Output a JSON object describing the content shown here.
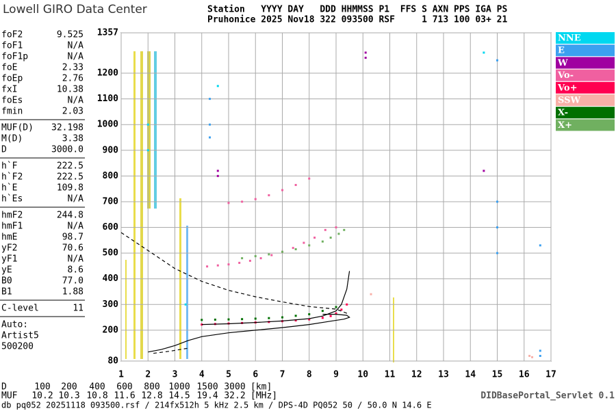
{
  "header": {
    "logo": "Lowell GIRO Data Center",
    "row1": "Station   YYYY DAY   DDD HHMMSS P1  FFS S AXN PPS IGA PS",
    "row2": "Pruhonice 2025 Nov18 322 093500 RSF     1 713 100 03+ 21"
  },
  "params": [
    [
      [
        "foF2",
        "9.525"
      ],
      [
        "foF1",
        "N/A"
      ],
      [
        "foF1p",
        "N/A"
      ],
      [
        "foE",
        "2.33"
      ],
      [
        "foEp",
        "2.76"
      ],
      [
        "fxI",
        "10.38"
      ],
      [
        "foEs",
        "N/A"
      ],
      [
        "fmin",
        "2.03"
      ]
    ],
    [
      [
        "MUF(D)",
        "32.198"
      ],
      [
        "M(D)",
        "3.38"
      ],
      [
        "D",
        "3000.0"
      ]
    ],
    [
      [
        "h`F",
        "222.5"
      ],
      [
        "h`F2",
        "222.5"
      ],
      [
        "h`E",
        "109.8"
      ],
      [
        "h`Es",
        "N/A"
      ]
    ],
    [
      [
        "hmF2",
        "244.8"
      ],
      [
        "hmF1",
        "N/A"
      ],
      [
        "hmE",
        "98.7"
      ],
      [
        "yF2",
        "70.6"
      ],
      [
        "yF1",
        "N/A"
      ],
      [
        "yE",
        "8.6"
      ],
      [
        "B0",
        "77.0"
      ],
      [
        "B1",
        "1.88"
      ]
    ],
    [
      [
        "C-level",
        "11"
      ]
    ]
  ],
  "autoscale": [
    "Auto:",
    "Artist5",
    "500200"
  ],
  "dist_table": {
    "d_label": "D",
    "d_values": [
      100,
      200,
      400,
      600,
      800,
      1000,
      1500,
      3000
    ],
    "d_unit": "[km]",
    "muf_label": "MUF",
    "muf_values": [
      10.2,
      10.3,
      10.8,
      11.6,
      12.8,
      14.5,
      19.4,
      32.2
    ],
    "muf_unit": "[MHz]"
  },
  "footer": "db pq052 20251118 093500.rsf / 214fx512h 5 kHz 2.5 km / DPS-4D PQ052 50 / 50.0 N 14.6 E",
  "servlet": "DIDBasePortal_Servlet 0.1",
  "chart_data": {
    "type": "scatter",
    "xlim": [
      1,
      17
    ],
    "xticks": [
      1,
      2,
      3,
      4,
      5,
      6,
      7,
      8,
      9,
      10,
      11,
      12,
      13,
      14,
      15,
      16,
      17
    ],
    "ylim": [
      80,
      1357
    ],
    "yticks": [
      80,
      200,
      300,
      400,
      500,
      600,
      700,
      800,
      900,
      1000,
      1100,
      1200,
      1357
    ],
    "grid": true,
    "legend": "right",
    "series": [
      {
        "name": "NNE",
        "color": "#00d8f0",
        "x": [
          14.5,
          2.0,
          2.0,
          3.4,
          4.6
        ],
        "y": [
          1280,
          1000,
          900,
          300,
          1150
        ]
      },
      {
        "name": "E",
        "color": "#3ca0f0",
        "x": [
          15,
          15,
          15,
          15,
          16.6,
          16.6,
          16.6,
          4.3,
          4.3,
          4.3
        ],
        "y": [
          700,
          600,
          500,
          1250,
          530,
          120,
          100,
          1100,
          1000,
          950
        ]
      },
      {
        "name": "W",
        "color": "#a000a0",
        "x": [
          10.1,
          10.1,
          4.6,
          4.6,
          14.5
        ],
        "y": [
          1260,
          1280,
          800,
          820,
          820
        ]
      },
      {
        "name": "Vo-",
        "color": "#f060a0",
        "x": [
          4.2,
          4.6,
          5,
          5.4,
          5.8,
          6.2,
          6.6,
          7,
          7.4,
          7.8,
          8.2,
          8.6,
          9,
          5,
          5.5,
          6,
          6.5,
          7,
          7.5,
          8
        ],
        "y": [
          448,
          452,
          456,
          462,
          470,
          480,
          492,
          505,
          520,
          540,
          560,
          590,
          600,
          695,
          700,
          710,
          725,
          745,
          765,
          790
        ]
      },
      {
        "name": "Vo+",
        "color": "#ff0050",
        "x": [
          4,
          4.5,
          5,
          5.5,
          6,
          6.5,
          7,
          7.5,
          8,
          8.5,
          8.8,
          9,
          9.2,
          9.4
        ],
        "y": [
          222,
          224,
          226,
          228,
          230,
          232,
          235,
          238,
          242,
          248,
          255,
          265,
          280,
          300
        ]
      },
      {
        "name": "SSW",
        "color": "#f8b0a8",
        "x": [
          16.2,
          10.3,
          16.3
        ],
        "y": [
          100,
          340,
          95
        ]
      },
      {
        "name": "X-",
        "color": "#007000",
        "x": [
          4,
          4.5,
          5,
          5.5,
          6,
          6.5,
          7,
          7.5,
          8,
          8.5,
          9
        ],
        "y": [
          240,
          241,
          242,
          243,
          245,
          247,
          250,
          256,
          262,
          275,
          290
        ]
      },
      {
        "name": "X+",
        "color": "#70b060",
        "x": [
          5.5,
          6,
          6.5,
          7,
          7.5,
          8,
          8.5,
          8.8,
          9.1,
          9.3
        ],
        "y": [
          480,
          488,
          495,
          505,
          515,
          530,
          545,
          560,
          575,
          590
        ]
      }
    ],
    "lines": [
      {
        "dash": false,
        "x": [
          2.0,
          2.5,
          3,
          3.5,
          4,
          5,
          6,
          7,
          8,
          8.8,
          9.3,
          9.5,
          9.4,
          9.0,
          8.5
        ],
        "y": [
          115,
          125,
          140,
          160,
          175,
          190,
          200,
          210,
          222,
          235,
          243,
          250,
          258,
          262,
          262
        ]
      },
      {
        "dash": false,
        "x": [
          4,
          5,
          6,
          7,
          8,
          8.5,
          9,
          9.2,
          9.4,
          9.5
        ],
        "y": [
          222,
          225,
          230,
          236,
          245,
          255,
          275,
          300,
          360,
          430
        ]
      },
      {
        "dash": true,
        "x": [
          1,
          2,
          3,
          4,
          5,
          6,
          7,
          8,
          9,
          9.5
        ],
        "y": [
          580,
          510,
          440,
          390,
          355,
          330,
          310,
          292,
          282,
          262
        ]
      },
      {
        "dash": true,
        "x": [
          2.2,
          2.8,
          3.5
        ],
        "y": [
          110,
          118,
          130
        ]
      }
    ]
  }
}
